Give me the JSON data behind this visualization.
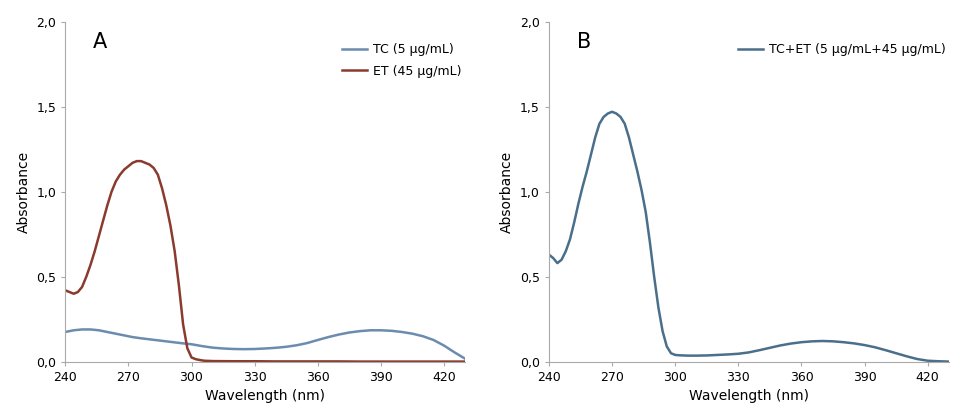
{
  "panel_A": {
    "label": "A",
    "xlabel": "Wavelength (nm)",
    "ylabel": "Absorbance",
    "xlim": [
      240,
      430
    ],
    "ylim": [
      0,
      2.0
    ],
    "yticks": [
      0.0,
      0.5,
      1.0,
      1.5,
      2.0
    ],
    "ytick_labels": [
      "0,0",
      "0,5",
      "1,0",
      "1,5",
      "2,0"
    ],
    "xticks": [
      240,
      270,
      300,
      330,
      360,
      390,
      420
    ],
    "legend_entries": [
      "TC (5 μg/mL)",
      "ET (45 μg/mL)"
    ],
    "TC_color": "#6b8cae",
    "ET_color": "#8b3a2e",
    "TC_wavelengths": [
      240,
      244,
      248,
      252,
      256,
      260,
      264,
      268,
      272,
      276,
      280,
      284,
      288,
      292,
      296,
      300,
      305,
      310,
      315,
      320,
      325,
      330,
      335,
      340,
      345,
      350,
      355,
      360,
      365,
      370,
      375,
      380,
      385,
      390,
      395,
      400,
      405,
      410,
      415,
      420,
      425,
      430
    ],
    "TC_absorbance": [
      0.175,
      0.185,
      0.19,
      0.19,
      0.185,
      0.175,
      0.165,
      0.155,
      0.145,
      0.138,
      0.132,
      0.126,
      0.12,
      0.114,
      0.108,
      0.103,
      0.092,
      0.083,
      0.078,
      0.075,
      0.074,
      0.075,
      0.078,
      0.082,
      0.088,
      0.097,
      0.11,
      0.128,
      0.145,
      0.16,
      0.172,
      0.18,
      0.185,
      0.185,
      0.182,
      0.175,
      0.165,
      0.15,
      0.128,
      0.095,
      0.055,
      0.018
    ],
    "ET_wavelengths": [
      240,
      242,
      244,
      246,
      248,
      250,
      252,
      254,
      256,
      258,
      260,
      262,
      264,
      266,
      268,
      270,
      272,
      274,
      276,
      278,
      280,
      282,
      284,
      286,
      288,
      290,
      292,
      294,
      296,
      298,
      300,
      302,
      304,
      306,
      310,
      320,
      330,
      340,
      350,
      360,
      370,
      380,
      390,
      400,
      410,
      420,
      430
    ],
    "ET_absorbance": [
      0.42,
      0.41,
      0.4,
      0.41,
      0.44,
      0.5,
      0.57,
      0.65,
      0.74,
      0.83,
      0.92,
      1.0,
      1.06,
      1.1,
      1.13,
      1.15,
      1.17,
      1.18,
      1.18,
      1.17,
      1.16,
      1.14,
      1.1,
      1.02,
      0.92,
      0.8,
      0.65,
      0.45,
      0.22,
      0.08,
      0.025,
      0.015,
      0.01,
      0.006,
      0.004,
      0.003,
      0.003,
      0.002,
      0.002,
      0.002,
      0.002,
      0.001,
      0.001,
      0.001,
      0.001,
      0.001,
      0.001
    ]
  },
  "panel_B": {
    "label": "B",
    "xlabel": "Wavelength (nm)",
    "ylabel": "Absorbance",
    "xlim": [
      240,
      430
    ],
    "ylim": [
      0,
      2.0
    ],
    "yticks": [
      0.0,
      0.5,
      1.0,
      1.5,
      2.0
    ],
    "ytick_labels": [
      "0,0",
      "0,5",
      "1,0",
      "1,5",
      "2,0"
    ],
    "xticks": [
      240,
      270,
      300,
      330,
      360,
      390,
      420
    ],
    "legend_entries": [
      "TC+ET (5 μg/mL+45 μg/mL)"
    ],
    "TCET_color": "#4a6f8a",
    "TCET_wavelengths": [
      240,
      242,
      244,
      246,
      248,
      250,
      252,
      254,
      256,
      258,
      260,
      262,
      264,
      266,
      268,
      270,
      272,
      274,
      276,
      278,
      280,
      282,
      284,
      286,
      288,
      290,
      292,
      294,
      296,
      298,
      300,
      302,
      304,
      306,
      308,
      310,
      315,
      320,
      325,
      330,
      335,
      340,
      345,
      350,
      355,
      360,
      365,
      370,
      375,
      380,
      385,
      390,
      395,
      400,
      405,
      410,
      415,
      420,
      425,
      430
    ],
    "TCET_absorbance": [
      0.63,
      0.61,
      0.58,
      0.6,
      0.65,
      0.72,
      0.82,
      0.93,
      1.03,
      1.12,
      1.22,
      1.32,
      1.4,
      1.44,
      1.46,
      1.47,
      1.46,
      1.44,
      1.4,
      1.32,
      1.22,
      1.12,
      1.01,
      0.88,
      0.7,
      0.5,
      0.32,
      0.18,
      0.09,
      0.05,
      0.04,
      0.038,
      0.037,
      0.036,
      0.036,
      0.036,
      0.037,
      0.04,
      0.043,
      0.047,
      0.055,
      0.068,
      0.082,
      0.096,
      0.107,
      0.115,
      0.12,
      0.122,
      0.12,
      0.115,
      0.108,
      0.098,
      0.085,
      0.068,
      0.05,
      0.032,
      0.016,
      0.006,
      0.003,
      0.001
    ]
  },
  "background_color": "#ffffff",
  "line_width": 1.8,
  "font_family": "DejaVu Sans",
  "axes_label_fontsize": 10,
  "tick_fontsize": 9,
  "legend_fontsize": 9
}
